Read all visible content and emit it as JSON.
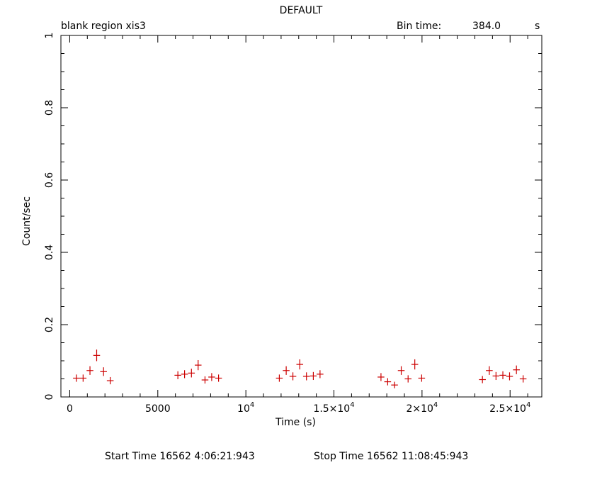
{
  "header": {
    "title": "DEFAULT",
    "subtitle_left": "blank region  xis3",
    "bin_time_label": "Bin time:",
    "bin_time_value": "384.0",
    "bin_time_unit": "s"
  },
  "footer": {
    "start": "Start Time 16562  4:06:21:943",
    "stop": "Stop Time 16562 11:08:45:943"
  },
  "colors": {
    "points": "#cc0000",
    "axes": "#000000"
  },
  "chart_data": {
    "type": "scatter",
    "title": "DEFAULT",
    "xlabel": "Time (s)",
    "ylabel": "Count/sec",
    "xlim": [
      -500,
      26800
    ],
    "ylim": [
      0,
      1
    ],
    "x_ticks": [
      {
        "value": 0,
        "label": "0"
      },
      {
        "value": 5000,
        "label": "5000"
      },
      {
        "value": 10000,
        "label": "10",
        "sup": "4"
      },
      {
        "value": 15000,
        "label": "1.5×10",
        "sup": "4"
      },
      {
        "value": 20000,
        "label": "2×10",
        "sup": "4"
      },
      {
        "value": 25000,
        "label": "2.5×10",
        "sup": "4"
      }
    ],
    "y_ticks": [
      {
        "value": 0,
        "label": "0"
      },
      {
        "value": 0.2,
        "label": "0.2"
      },
      {
        "value": 0.4,
        "label": "0.4"
      },
      {
        "value": 0.6,
        "label": "0.6"
      },
      {
        "value": 0.8,
        "label": "0.8"
      },
      {
        "value": 1,
        "label": "1"
      }
    ],
    "x_half_width": 192,
    "series": [
      {
        "points": [
          {
            "x": 380,
            "y": 0.052,
            "err": 0.01
          },
          {
            "x": 760,
            "y": 0.052,
            "err": 0.01
          },
          {
            "x": 1150,
            "y": 0.073,
            "err": 0.012
          },
          {
            "x": 1530,
            "y": 0.115,
            "err": 0.016
          },
          {
            "x": 1920,
            "y": 0.07,
            "err": 0.012
          },
          {
            "x": 2300,
            "y": 0.045,
            "err": 0.01
          },
          {
            "x": 6140,
            "y": 0.06,
            "err": 0.011
          },
          {
            "x": 6520,
            "y": 0.063,
            "err": 0.011
          },
          {
            "x": 6910,
            "y": 0.066,
            "err": 0.012
          },
          {
            "x": 7290,
            "y": 0.088,
            "err": 0.014
          },
          {
            "x": 7680,
            "y": 0.047,
            "err": 0.01
          },
          {
            "x": 8060,
            "y": 0.055,
            "err": 0.011
          },
          {
            "x": 8450,
            "y": 0.052,
            "err": 0.01
          },
          {
            "x": 11900,
            "y": 0.052,
            "err": 0.01
          },
          {
            "x": 12290,
            "y": 0.073,
            "err": 0.012
          },
          {
            "x": 12670,
            "y": 0.057,
            "err": 0.011
          },
          {
            "x": 13060,
            "y": 0.09,
            "err": 0.014
          },
          {
            "x": 13440,
            "y": 0.057,
            "err": 0.011
          },
          {
            "x": 13830,
            "y": 0.058,
            "err": 0.011
          },
          {
            "x": 14210,
            "y": 0.063,
            "err": 0.011
          },
          {
            "x": 17670,
            "y": 0.055,
            "err": 0.011
          },
          {
            "x": 18050,
            "y": 0.042,
            "err": 0.01
          },
          {
            "x": 18440,
            "y": 0.033,
            "err": 0.009
          },
          {
            "x": 18820,
            "y": 0.073,
            "err": 0.012
          },
          {
            "x": 19210,
            "y": 0.05,
            "err": 0.01
          },
          {
            "x": 19590,
            "y": 0.09,
            "err": 0.014
          },
          {
            "x": 19980,
            "y": 0.052,
            "err": 0.01
          },
          {
            "x": 23430,
            "y": 0.048,
            "err": 0.01
          },
          {
            "x": 23820,
            "y": 0.073,
            "err": 0.012
          },
          {
            "x": 24200,
            "y": 0.058,
            "err": 0.011
          },
          {
            "x": 24590,
            "y": 0.06,
            "err": 0.011
          },
          {
            "x": 24970,
            "y": 0.057,
            "err": 0.011
          },
          {
            "x": 25360,
            "y": 0.075,
            "err": 0.012
          },
          {
            "x": 25740,
            "y": 0.05,
            "err": 0.01
          }
        ]
      }
    ]
  }
}
